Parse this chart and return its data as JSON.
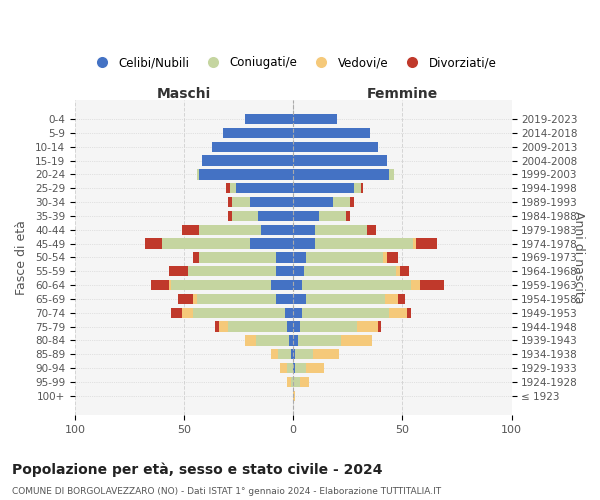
{
  "age_groups": [
    "100+",
    "95-99",
    "90-94",
    "85-89",
    "80-84",
    "75-79",
    "70-74",
    "65-69",
    "60-64",
    "55-59",
    "50-54",
    "45-49",
    "40-44",
    "35-39",
    "30-34",
    "25-29",
    "20-24",
    "15-19",
    "10-14",
    "5-9",
    "0-4"
  ],
  "birth_years": [
    "≤ 1923",
    "1924-1928",
    "1929-1933",
    "1934-1938",
    "1939-1943",
    "1944-1948",
    "1949-1953",
    "1954-1958",
    "1959-1963",
    "1964-1968",
    "1969-1973",
    "1974-1978",
    "1979-1983",
    "1984-1988",
    "1989-1993",
    "1994-1998",
    "1999-2003",
    "2004-2008",
    "2009-2013",
    "2014-2018",
    "2019-2023"
  ],
  "colors": {
    "celibi": "#4472C4",
    "coniugati": "#c5d5a0",
    "vedovi": "#F5C97A",
    "divorziati": "#c0392b"
  },
  "males": {
    "celibi": [
      0,
      0,
      0,
      1,
      2,
      3,
      4,
      8,
      10,
      8,
      8,
      20,
      15,
      16,
      20,
      26,
      43,
      42,
      37,
      32,
      22
    ],
    "coniugati": [
      0,
      1,
      3,
      6,
      15,
      27,
      42,
      36,
      46,
      40,
      35,
      40,
      28,
      12,
      8,
      3,
      1,
      0,
      0,
      0,
      0
    ],
    "vedovi": [
      0,
      2,
      3,
      3,
      5,
      4,
      5,
      2,
      1,
      0,
      0,
      0,
      0,
      0,
      0,
      0,
      0,
      0,
      0,
      0,
      0
    ],
    "divorziati": [
      0,
      0,
      0,
      0,
      0,
      2,
      5,
      7,
      8,
      9,
      3,
      8,
      8,
      2,
      2,
      2,
      0,
      0,
      0,
      0,
      0
    ]
  },
  "females": {
    "celibi": [
      0,
      0,
      1,
      1,
      2,
      3,
      4,
      6,
      4,
      5,
      6,
      10,
      10,
      12,
      18,
      28,
      44,
      43,
      39,
      35,
      20
    ],
    "coniugati": [
      0,
      3,
      5,
      8,
      20,
      26,
      40,
      36,
      50,
      42,
      35,
      45,
      24,
      12,
      8,
      3,
      2,
      0,
      0,
      0,
      0
    ],
    "vedovi": [
      1,
      4,
      8,
      12,
      14,
      10,
      8,
      6,
      4,
      2,
      2,
      1,
      0,
      0,
      0,
      0,
      0,
      0,
      0,
      0,
      0
    ],
    "divorziati": [
      0,
      0,
      0,
      0,
      0,
      1,
      2,
      3,
      11,
      4,
      5,
      10,
      4,
      2,
      2,
      1,
      0,
      0,
      0,
      0,
      0
    ]
  },
  "title": "Popolazione per età, sesso e stato civile - 2024",
  "subtitle": "COMUNE DI BORGOLAVEZZARO (NO) - Dati ISTAT 1° gennaio 2024 - Elaborazione TUTTITALIA.IT",
  "ylabel_left": "Fasce di età",
  "ylabel_right": "Anni di nascita",
  "xlim": 100,
  "legend_labels": [
    "Celibi/Nubili",
    "Coniugati/e",
    "Vedovi/e",
    "Divorziati/e"
  ],
  "maschi_label": "Maschi",
  "femmine_label": "Femmine",
  "bg_color": "#f5f5f5",
  "grid_color": "#cccccc"
}
